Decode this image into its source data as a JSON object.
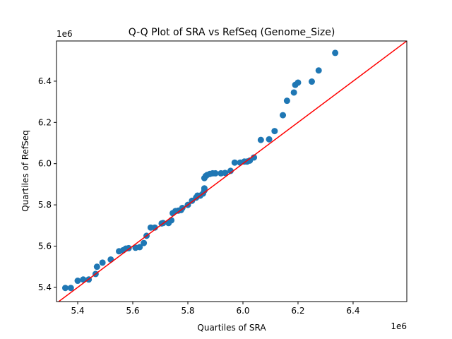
{
  "chart_data": {
    "type": "scatter",
    "title": "Q-Q Plot of SRA vs RefSeq (Genome_Size)",
    "xlabel": "Quartiles of SRA",
    "ylabel": "Quartiles of RefSeq",
    "x_offset_label": "1e6",
    "y_offset_label": "1e6",
    "xlim": [
      5.323,
      6.595
    ],
    "ylim": [
      5.331,
      6.595
    ],
    "xticks": [
      5.4,
      5.6,
      5.8,
      6.0,
      6.2,
      6.4
    ],
    "xtick_labels": [
      "5.4",
      "5.6",
      "5.8",
      "6.0",
      "6.2",
      "6.4"
    ],
    "yticks": [
      5.4,
      5.6,
      5.8,
      6.0,
      6.2,
      6.4
    ],
    "ytick_labels": [
      "5.4",
      "5.6",
      "5.8",
      "6.0",
      "6.2",
      "6.4"
    ],
    "grid": false,
    "point_color": "#1f77b4",
    "reference_line": {
      "type": "y=x",
      "color": "#ff0000"
    },
    "points": [
      [
        5.355,
        5.397
      ],
      [
        5.375,
        5.397
      ],
      [
        5.4,
        5.432
      ],
      [
        5.42,
        5.438
      ],
      [
        5.44,
        5.438
      ],
      [
        5.465,
        5.465
      ],
      [
        5.47,
        5.5
      ],
      [
        5.49,
        5.52
      ],
      [
        5.52,
        5.535
      ],
      [
        5.55,
        5.575
      ],
      [
        5.565,
        5.58
      ],
      [
        5.575,
        5.588
      ],
      [
        5.585,
        5.59
      ],
      [
        5.61,
        5.592
      ],
      [
        5.625,
        5.595
      ],
      [
        5.64,
        5.615
      ],
      [
        5.65,
        5.65
      ],
      [
        5.665,
        5.69
      ],
      [
        5.68,
        5.69
      ],
      [
        5.705,
        5.71
      ],
      [
        5.71,
        5.712
      ],
      [
        5.73,
        5.712
      ],
      [
        5.74,
        5.725
      ],
      [
        5.745,
        5.76
      ],
      [
        5.755,
        5.77
      ],
      [
        5.765,
        5.772
      ],
      [
        5.775,
        5.775
      ],
      [
        5.78,
        5.785
      ],
      [
        5.8,
        5.8
      ],
      [
        5.815,
        5.82
      ],
      [
        5.83,
        5.835
      ],
      [
        5.835,
        5.845
      ],
      [
        5.845,
        5.845
      ],
      [
        5.855,
        5.855
      ],
      [
        5.86,
        5.87
      ],
      [
        5.86,
        5.88
      ],
      [
        5.86,
        5.93
      ],
      [
        5.865,
        5.94
      ],
      [
        5.87,
        5.945
      ],
      [
        5.88,
        5.95
      ],
      [
        5.89,
        5.953
      ],
      [
        5.9,
        5.953
      ],
      [
        5.92,
        5.953
      ],
      [
        5.935,
        5.955
      ],
      [
        5.955,
        5.965
      ],
      [
        5.97,
        6.005
      ],
      [
        5.99,
        6.005
      ],
      [
        6.005,
        6.01
      ],
      [
        6.015,
        6.01
      ],
      [
        6.025,
        6.015
      ],
      [
        6.04,
        6.03
      ],
      [
        6.065,
        6.115
      ],
      [
        6.095,
        6.118
      ],
      [
        6.115,
        6.158
      ],
      [
        6.145,
        6.235
      ],
      [
        6.16,
        6.305
      ],
      [
        6.185,
        6.345
      ],
      [
        6.19,
        6.382
      ],
      [
        6.2,
        6.393
      ],
      [
        6.25,
        6.398
      ],
      [
        6.275,
        6.452
      ],
      [
        6.335,
        6.537
      ]
    ]
  }
}
